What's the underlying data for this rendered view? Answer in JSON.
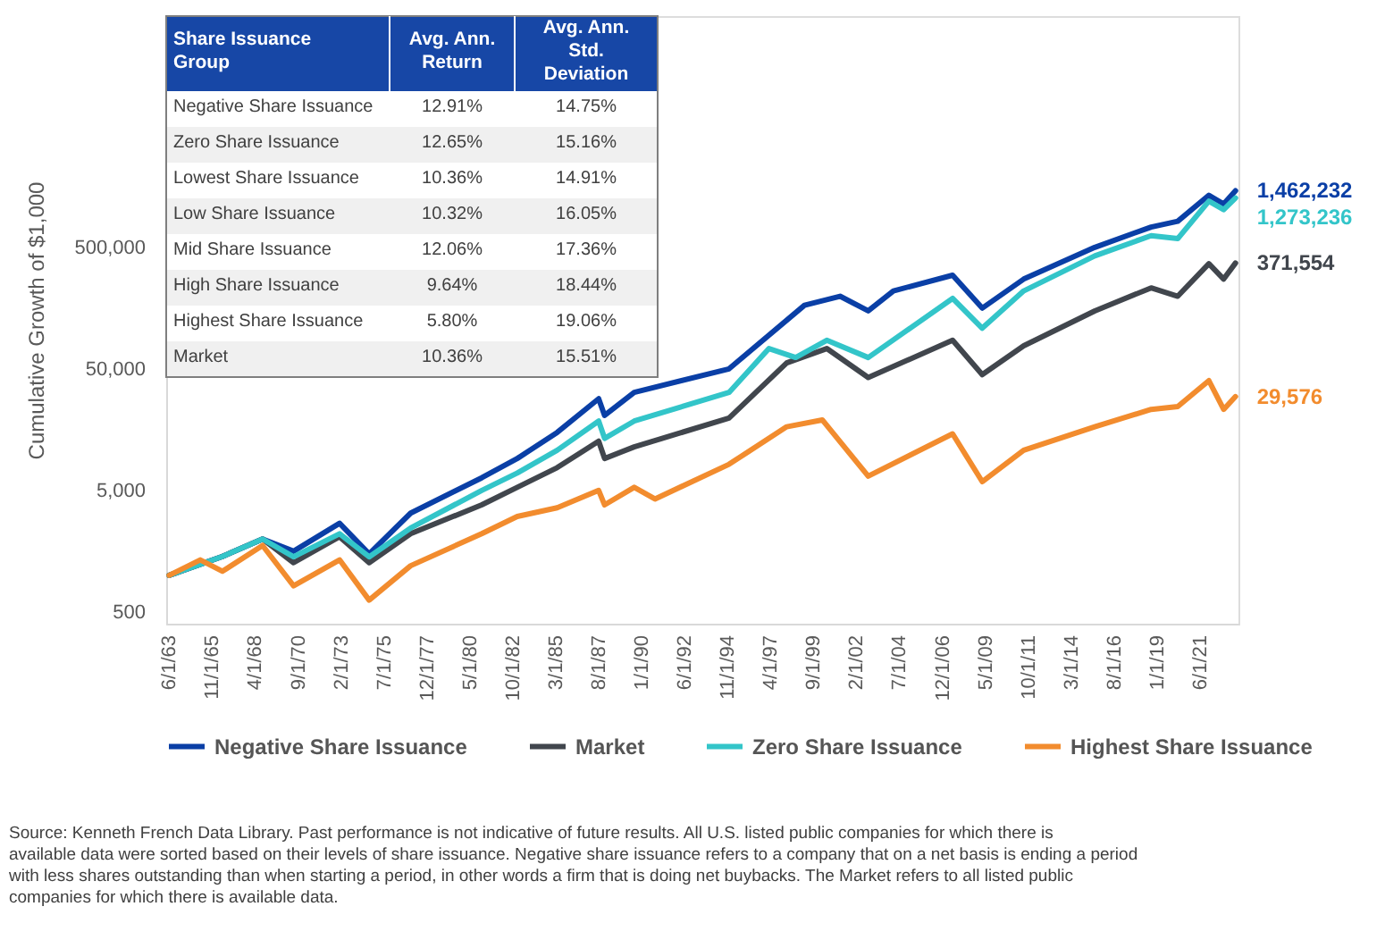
{
  "chart_data": {
    "type": "line",
    "ylabel": "Cumulative Growth of $1,000",
    "log": "y",
    "grid": false,
    "legend": "bottom",
    "xlim": [
      "1963-04-01",
      "2023-08-01"
    ],
    "ylim": [
      400,
      40000000
    ],
    "yticks": [
      {
        "value": 500,
        "label": "500"
      },
      {
        "value": 5000,
        "label": "5,000"
      },
      {
        "value": 50000,
        "label": "50,000"
      },
      {
        "value": 500000,
        "label": "500,000"
      }
    ],
    "xticks": [
      {
        "value": "1963-06-01",
        "label": "6/1/63"
      },
      {
        "value": "1965-11-01",
        "label": "11/1/65"
      },
      {
        "value": "1968-04-01",
        "label": "4/1/68"
      },
      {
        "value": "1970-09-01",
        "label": "9/1/70"
      },
      {
        "value": "1973-02-01",
        "label": "2/1/73"
      },
      {
        "value": "1975-07-01",
        "label": "7/1/75"
      },
      {
        "value": "1977-12-01",
        "label": "12/1/77"
      },
      {
        "value": "1980-05-01",
        "label": "5/1/80"
      },
      {
        "value": "1982-10-01",
        "label": "10/1/82"
      },
      {
        "value": "1985-03-01",
        "label": "3/1/85"
      },
      {
        "value": "1987-08-01",
        "label": "8/1/87"
      },
      {
        "value": "1990-01-01",
        "label": "1/1/90"
      },
      {
        "value": "1992-06-01",
        "label": "6/1/92"
      },
      {
        "value": "1994-11-01",
        "label": "11/1/94"
      },
      {
        "value": "1997-04-01",
        "label": "4/1/97"
      },
      {
        "value": "1999-09-01",
        "label": "9/1/99"
      },
      {
        "value": "2002-02-01",
        "label": "2/1/02"
      },
      {
        "value": "2004-07-01",
        "label": "7/1/04"
      },
      {
        "value": "2006-12-01",
        "label": "12/1/06"
      },
      {
        "value": "2009-05-01",
        "label": "5/1/09"
      },
      {
        "value": "2011-10-01",
        "label": "10/1/11"
      },
      {
        "value": "2014-03-01",
        "label": "3/1/14"
      },
      {
        "value": "2016-08-01",
        "label": "8/1/16"
      },
      {
        "value": "2019-01-01",
        "label": "1/1/19"
      },
      {
        "value": "2021-06-01",
        "label": "6/1/21"
      }
    ],
    "series": [
      {
        "name": "Negative Share Issuance",
        "color": "#0a3fa6",
        "x": [
          "1963-06",
          "1966-06",
          "1968-09",
          "1970-06",
          "1973-01",
          "1974-09",
          "1977-01",
          "1981-01",
          "1983-01",
          "1985-04",
          "1987-08",
          "1987-12",
          "1989-08",
          "1994-12",
          "1999-03",
          "2001-03",
          "2002-10",
          "2004-03",
          "2007-07",
          "2009-03",
          "2011-07",
          "2015-07",
          "2018-09",
          "2020-03",
          "2021-12",
          "2022-10",
          "2023-06"
        ],
        "values": [
          1000,
          1430,
          1990,
          1580,
          2680,
          1500,
          3250,
          6350,
          9150,
          15000,
          28400,
          20700,
          32000,
          50000,
          167000,
          198000,
          150000,
          219000,
          295000,
          158000,
          274000,
          500000,
          735000,
          819000,
          1341000,
          1138000,
          1462232
        ]
      },
      {
        "name": "Market",
        "color": "#41464d",
        "x": [
          "1963-06",
          "1966-06",
          "1968-09",
          "1970-06",
          "1973-01",
          "1974-09",
          "1977-01",
          "1981-01",
          "1983-01",
          "1985-04",
          "1987-08",
          "1987-12",
          "1989-08",
          "1994-12",
          "1998-03",
          "2000-06",
          "2002-10",
          "2007-07",
          "2009-03",
          "2011-07",
          "2015-07",
          "2018-09",
          "2020-03",
          "2021-12",
          "2022-10",
          "2023-06"
        ],
        "values": [
          1000,
          1430,
          1990,
          1270,
          2080,
          1270,
          2200,
          3800,
          5300,
          7700,
          12700,
          9150,
          11400,
          19700,
          56000,
          73500,
          42400,
          86000,
          44800,
          77500,
          150000,
          232000,
          198000,
          367000,
          274000,
          371554
        ]
      },
      {
        "name": "Zero Share Issuance",
        "color": "#33c5c9",
        "x": [
          "1963-06",
          "1966-06",
          "1968-09",
          "1970-06",
          "1973-01",
          "1974-09",
          "1977-01",
          "1981-01",
          "1983-01",
          "1985-04",
          "1987-08",
          "1987-12",
          "1989-08",
          "1994-12",
          "1997-03",
          "1998-09",
          "2000-06",
          "2002-10",
          "2007-07",
          "2009-03",
          "2011-07",
          "2015-07",
          "2018-09",
          "2020-03",
          "2021-12",
          "2022-10",
          "2023-06"
        ],
        "values": [
          1000,
          1430,
          1990,
          1420,
          2200,
          1420,
          2450,
          5000,
          6950,
          10700,
          18600,
          13400,
          18600,
          32000,
          73500,
          62000,
          86000,
          62000,
          190000,
          108000,
          219000,
          425000,
          624000,
          590000,
          1200000,
          1020000,
          1273236
        ]
      },
      {
        "name": "Highest Share Issuance",
        "color": "#f28c2e",
        "x": [
          "1963-06",
          "1965-03",
          "1966-06",
          "1968-09",
          "1970-06",
          "1973-01",
          "1974-09",
          "1977-01",
          "1981-01",
          "1983-01",
          "1985-04",
          "1987-08",
          "1987-12",
          "1989-08",
          "1990-10",
          "1994-12",
          "1998-03",
          "2000-03",
          "2002-10",
          "2007-07",
          "2009-03",
          "2011-07",
          "2015-07",
          "2018-09",
          "2020-03",
          "2021-12",
          "2022-10",
          "2023-06"
        ],
        "values": [
          1000,
          1340,
          1080,
          1760,
          820,
          1340,
          625,
          1200,
          2200,
          3050,
          3600,
          5000,
          3800,
          5300,
          4250,
          8200,
          16700,
          19000,
          6550,
          14600,
          5900,
          10700,
          16700,
          23200,
          24500,
          40000,
          23200,
          29576
        ]
      }
    ],
    "annotations": [
      {
        "text": "1,462,232",
        "x": "2023-06",
        "y": 1462232
      },
      {
        "text": "1,273,236",
        "x": "2023-06",
        "y": 1273236
      },
      {
        "text": "371,554",
        "x": "2023-06",
        "y": 371554
      },
      {
        "text": "29,576",
        "x": "2023-06",
        "y": 29576
      },
      "Share Issuance Group",
      "Avg. Ann. Return",
      "Avg. Ann. Std. Deviation",
      "Negative Share Issuance",
      "12.91%",
      "14.75%",
      "Zero Share Issuance",
      "12.65%",
      "15.16%",
      "Lowest Share Issuance",
      "10.36%",
      "14.91%",
      "Low Share Issuance",
      "10.32%",
      "16.05%",
      "Mid Share Issuance",
      "12.06%",
      "17.36%",
      "High Share Issuance",
      "9.64%",
      "18.44%",
      "Highest Share Issuance",
      "5.80%",
      "19.06%",
      "Market",
      "10.36%",
      "15.51%",
      "Source: Kenneth French Data Library. Past performance is not indicative of future results. All U.S. listed public companies for which there is available data were sorted based on their levels of share issuance. Negative share issuance refers to a company that on a net basis is ending a period with less shares outstanding than when starting a period, in other words a firm that is doing net buybacks. The Market refers to all listed public companies for which there is available data."
    ]
  }
}
